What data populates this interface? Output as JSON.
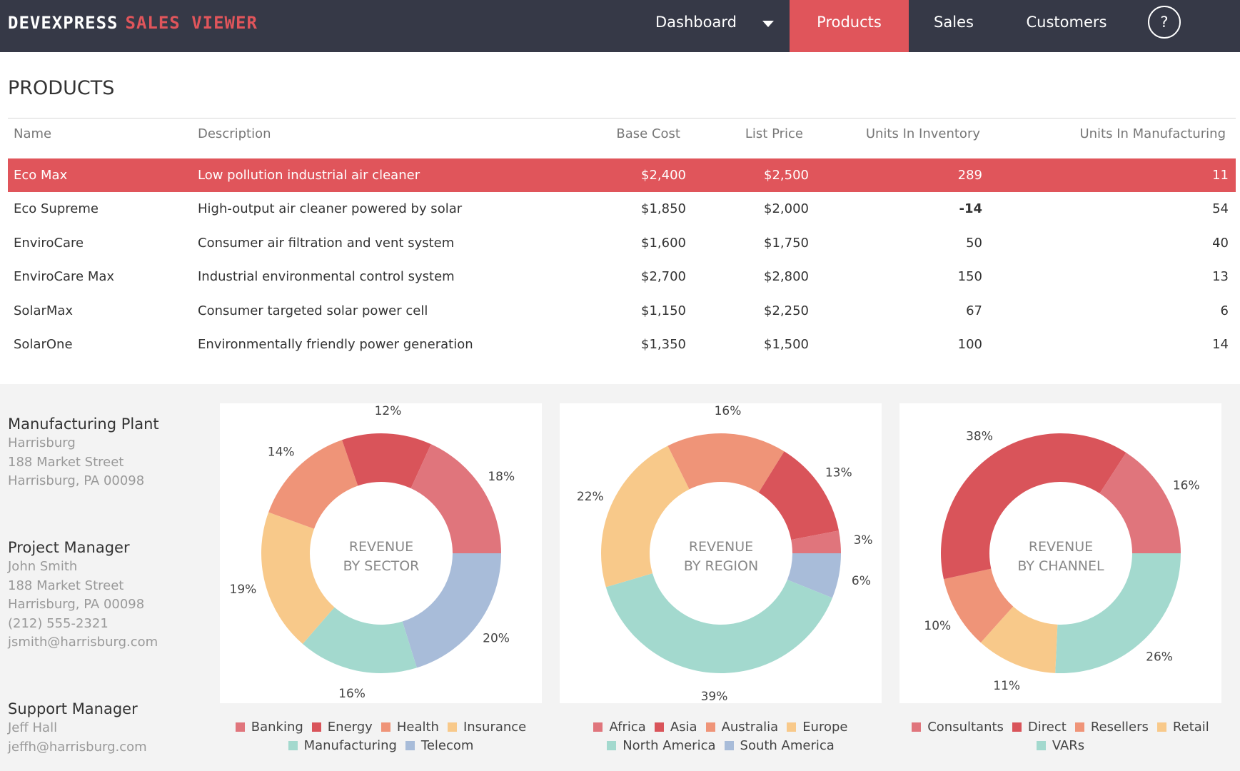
{
  "header": {
    "brand_part1": "DEVEXPRESS",
    "brand_part2": "SALES VIEWER",
    "nav": {
      "dashboard": "Dashboard",
      "products": "Products",
      "sales": "Sales",
      "customers": "Customers",
      "help": "?"
    },
    "active_tab": "Products"
  },
  "products": {
    "title": "PRODUCTS",
    "columns": [
      "Name",
      "Description",
      "Base Cost",
      "List Price",
      "Units In Inventory",
      "Units In Manufacturing"
    ],
    "rows": [
      {
        "name": "Eco Max",
        "description": "Low pollution industrial air cleaner",
        "base_cost": "$2,400",
        "list_price": "$2,500",
        "inventory": "289",
        "manufacturing": "11",
        "selected": true
      },
      {
        "name": "Eco Supreme",
        "description": "High-output air cleaner powered by solar",
        "base_cost": "$1,850",
        "list_price": "$2,000",
        "inventory": "-14",
        "manufacturing": "54"
      },
      {
        "name": "EnviroCare",
        "description": "Consumer air filtration and vent system",
        "base_cost": "$1,600",
        "list_price": "$1,750",
        "inventory": "50",
        "manufacturing": "40"
      },
      {
        "name": "EnviroCare Max",
        "description": "Industrial environmental control system",
        "base_cost": "$2,700",
        "list_price": "$2,800",
        "inventory": "150",
        "manufacturing": "13"
      },
      {
        "name": "SolarMax",
        "description": "Consumer targeted solar power cell",
        "base_cost": "$1,150",
        "list_price": "$2,250",
        "inventory": "67",
        "manufacturing": "6"
      },
      {
        "name": "SolarOne",
        "description": "Environmentally friendly power generation",
        "base_cost": "$1,350",
        "list_price": "$1,500",
        "inventory": "100",
        "manufacturing": "14"
      }
    ]
  },
  "contacts": [
    {
      "role": "Manufacturing Plant",
      "lines": [
        "Harrisburg",
        "188 Market Street",
        "Harrisburg, PA 00098"
      ]
    },
    {
      "role": "Project Manager",
      "lines": [
        "John Smith",
        "188 Market Street",
        "Harrisburg, PA 00098",
        "(212) 555-2321",
        "jsmith@harrisburg.com"
      ]
    },
    {
      "role": "Support Manager",
      "lines": [
        "Jeff Hall",
        "jeffh@harrisburg.com"
      ]
    }
  ],
  "colors": {
    "accent": "#e0555b",
    "header_bg": "#363947",
    "slice_palette": [
      "#e0757c",
      "#d9545a",
      "#ef9478",
      "#f8c98a",
      "#a3d9ce",
      "#a8bcd9"
    ]
  },
  "chart_data": [
    {
      "type": "pie",
      "title": "REVENUE BY SECTOR",
      "order_clockwise_from_east": [
        "Telecom",
        "Manufacturing",
        "Insurance",
        "Health",
        "Energy",
        "Banking"
      ],
      "slices": [
        {
          "label": "Banking",
          "value": 18,
          "color": "#e0757c"
        },
        {
          "label": "Energy",
          "value": 12,
          "color": "#d9545a"
        },
        {
          "label": "Health",
          "value": 14,
          "color": "#ef9478"
        },
        {
          "label": "Insurance",
          "value": 19,
          "color": "#f8c98a"
        },
        {
          "label": "Manufacturing",
          "value": 16,
          "color": "#a3d9ce"
        },
        {
          "label": "Telecom",
          "value": 20,
          "color": "#a8bcd9"
        }
      ]
    },
    {
      "type": "pie",
      "title": "REVENUE BY REGION",
      "order_clockwise_from_east": [
        "South America",
        "North America",
        "Europe",
        "Australia",
        "Asia",
        "Africa"
      ],
      "slices": [
        {
          "label": "Africa",
          "value": 3,
          "color": "#e0757c"
        },
        {
          "label": "Asia",
          "value": 13,
          "color": "#d9545a"
        },
        {
          "label": "Australia",
          "value": 16,
          "color": "#ef9478"
        },
        {
          "label": "Europe",
          "value": 22,
          "color": "#f8c98a"
        },
        {
          "label": "North America",
          "value": 39,
          "color": "#a3d9ce"
        },
        {
          "label": "South America",
          "value": 6,
          "color": "#a8bcd9"
        }
      ]
    },
    {
      "type": "pie",
      "title": "REVENUE BY CHANNEL",
      "order_clockwise_from_east": [
        "VARs",
        "Retail",
        "Resellers",
        "Direct",
        "Consultants"
      ],
      "slices": [
        {
          "label": "Consultants",
          "value": 16,
          "color": "#e0757c"
        },
        {
          "label": "Direct",
          "value": 38,
          "color": "#d9545a"
        },
        {
          "label": "Resellers",
          "value": 10,
          "color": "#ef9478"
        },
        {
          "label": "Retail",
          "value": 11,
          "color": "#f8c98a"
        },
        {
          "label": "VARs",
          "value": 26,
          "color": "#a3d9ce"
        }
      ]
    }
  ]
}
